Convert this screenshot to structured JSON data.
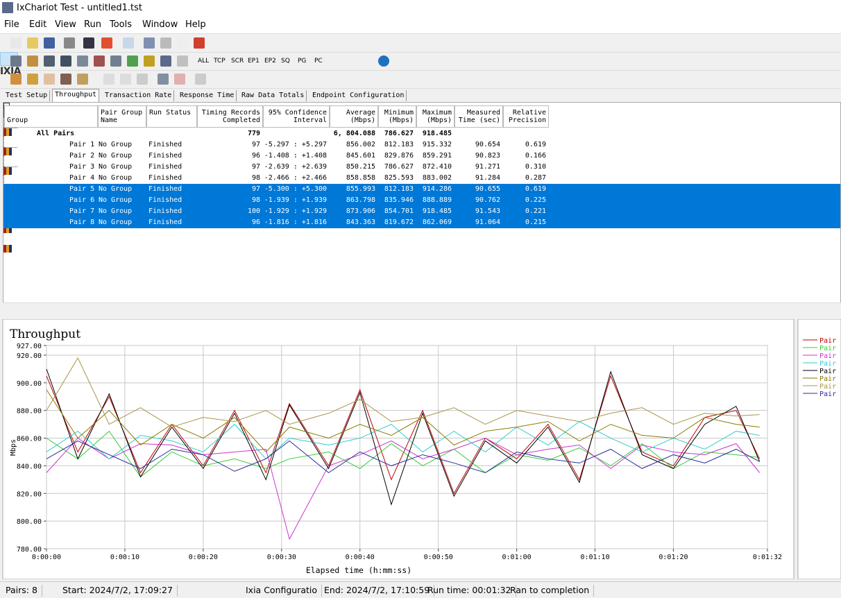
{
  "window": {
    "title": "IxChariot Test - untitled1.tst"
  },
  "menu": [
    "File",
    "Edit",
    "View",
    "Run",
    "Tools",
    "Window",
    "Help"
  ],
  "toolbar": {
    "filters": [
      "ALL",
      "TCP",
      "SCR",
      "EP1",
      "EP2",
      "SQ",
      "PG",
      "PC"
    ],
    "logo": "IXIA"
  },
  "tabs": [
    "Test Setup",
    "Throughput",
    "Transaction Rate",
    "Response Time",
    "Raw Data Totals",
    "Endpoint Configuration"
  ],
  "active_tab": 1,
  "table": {
    "columns": [
      "Group",
      "Pair Group Name",
      "Run Status",
      "Timing Records Completed",
      "95% Confidence Interval",
      "Average (Mbps)",
      "Minimum (Mbps)",
      "Maximum (Mbps)",
      "Measured Time (sec)",
      "Relative Precision"
    ],
    "summary": {
      "group": "All Pairs",
      "records": "779",
      "average": "6, 804.088",
      "minimum": "786.627",
      "maximum": "918.485"
    },
    "rows": [
      {
        "cells": [
          "Pair 1",
          "No Group",
          "Finished",
          "97",
          "-5.297 : +5.297",
          "856.002",
          "812.183",
          "915.332",
          "90.654",
          "0.619"
        ],
        "selected": false
      },
      {
        "cells": [
          "Pair 2",
          "No Group",
          "Finished",
          "96",
          "-1.408 : +1.408",
          "845.601",
          "829.876",
          "859.291",
          "90.823",
          "0.166"
        ],
        "selected": false
      },
      {
        "cells": [
          "Pair 3",
          "No Group",
          "Finished",
          "97",
          "-2.639 : +2.639",
          "850.215",
          "786.627",
          "872.410",
          "91.271",
          "0.310"
        ],
        "selected": false
      },
      {
        "cells": [
          "Pair 4",
          "No Group",
          "Finished",
          "98",
          "-2.466 : +2.466",
          "858.858",
          "825.593",
          "883.002",
          "91.284",
          "0.287"
        ],
        "selected": false
      },
      {
        "cells": [
          "Pair 5",
          "No Group",
          "Finished",
          "97",
          "-5.300 : +5.300",
          "855.993",
          "812.183",
          "914.286",
          "90.655",
          "0.619"
        ],
        "selected": true
      },
      {
        "cells": [
          "Pair 6",
          "No Group",
          "Finished",
          "98",
          "-1.939 : +1.939",
          "863.798",
          "835.946",
          "888.889",
          "90.762",
          "0.225"
        ],
        "selected": true
      },
      {
        "cells": [
          "Pair 7",
          "No Group",
          "Finished",
          "100",
          "-1.929 : +1.929",
          "873.906",
          "854.701",
          "918.485",
          "91.543",
          "0.221"
        ],
        "selected": true
      },
      {
        "cells": [
          "Pair 8",
          "No Group",
          "Finished",
          "96",
          "-1.816 : +1.816",
          "843.363",
          "819.672",
          "862.069",
          "91.064",
          "0.215"
        ],
        "selected": true
      }
    ]
  },
  "chart_data": {
    "type": "line",
    "title": "Throughput",
    "x_label": "Elapsed time (h:mm:ss)",
    "y_label": "Mbps",
    "x": [
      0,
      4,
      8,
      12,
      16,
      20,
      24,
      28,
      31,
      36,
      40,
      44,
      48,
      52,
      56,
      60,
      64,
      68,
      72,
      76,
      80,
      84,
      88,
      91
    ],
    "xlim": [
      0,
      92
    ],
    "xticks": [
      {
        "value": 0,
        "label": "0:00:00"
      },
      {
        "value": 10,
        "label": "0:00:10"
      },
      {
        "value": 20,
        "label": "0:00:20"
      },
      {
        "value": 30,
        "label": "0:00:30"
      },
      {
        "value": 40,
        "label": "0:00:40"
      },
      {
        "value": 50,
        "label": "0:00:50"
      },
      {
        "value": 60,
        "label": "0:01:00"
      },
      {
        "value": 70,
        "label": "0:01:10"
      },
      {
        "value": 80,
        "label": "0:01:20"
      },
      {
        "value": 92,
        "label": "0:01:32"
      }
    ],
    "ylim": [
      780,
      927
    ],
    "yticks": [
      {
        "value": 780,
        "label": "780.00"
      },
      {
        "value": 800,
        "label": "800.00"
      },
      {
        "value": 820,
        "label": "820.00"
      },
      {
        "value": 840,
        "label": "840.00"
      },
      {
        "value": 860,
        "label": "860.00"
      },
      {
        "value": 880,
        "label": "880.00"
      },
      {
        "value": 900,
        "label": "900.00"
      },
      {
        "value": 920,
        "label": "920.00"
      },
      {
        "value": 927,
        "label": "927.00"
      }
    ],
    "grid": true,
    "legend": "right",
    "series": [
      {
        "name": "Pair",
        "color": "#c00000",
        "values": [
          905,
          850,
          890,
          835,
          870,
          840,
          880,
          835,
          885,
          840,
          895,
          830,
          880,
          820,
          860,
          845,
          870,
          830,
          905,
          850,
          840,
          875,
          880,
          845
        ]
      },
      {
        "name": "Pair",
        "color": "#33cc33",
        "values": [
          860,
          845,
          865,
          832,
          850,
          840,
          845,
          838,
          845,
          850,
          838,
          856,
          840,
          852,
          835,
          848,
          844,
          853,
          840,
          856,
          838,
          850,
          848,
          846
        ]
      },
      {
        "name": "Pair",
        "color": "#cc33cc",
        "values": [
          835,
          860,
          845,
          856,
          855,
          848,
          850,
          852,
          787,
          840,
          848,
          858,
          845,
          852,
          860,
          848,
          852,
          855,
          838,
          855,
          850,
          848,
          856,
          835
        ]
      },
      {
        "name": "Pair",
        "color": "#33cccc",
        "values": [
          850,
          865,
          845,
          862,
          858,
          850,
          870,
          845,
          860,
          855,
          860,
          870,
          850,
          865,
          850,
          868,
          855,
          872,
          860,
          850,
          860,
          852,
          865,
          862
        ]
      },
      {
        "name": "Pair",
        "color": "#000000",
        "values": [
          910,
          845,
          892,
          832,
          868,
          838,
          878,
          830,
          884,
          838,
          893,
          812,
          878,
          818,
          858,
          842,
          868,
          828,
          908,
          848,
          838,
          870,
          883,
          843
        ]
      },
      {
        "name": "Pair",
        "color": "#8a7a00",
        "values": [
          895,
          860,
          880,
          855,
          870,
          860,
          875,
          850,
          868,
          860,
          870,
          862,
          875,
          855,
          865,
          868,
          872,
          858,
          870,
          862,
          860,
          875,
          870,
          868
        ]
      },
      {
        "name": "Pair",
        "color": "#a8944a",
        "values": [
          880,
          918,
          870,
          882,
          868,
          875,
          872,
          880,
          870,
          878,
          888,
          872,
          875,
          882,
          870,
          880,
          876,
          872,
          878,
          882,
          870,
          878,
          876,
          877
        ]
      },
      {
        "name": "Pair",
        "color": "#2a2a9a",
        "values": [
          845,
          858,
          848,
          838,
          852,
          848,
          836,
          845,
          858,
          835,
          850,
          840,
          848,
          842,
          835,
          850,
          845,
          842,
          852,
          838,
          848,
          842,
          852,
          843
        ]
      }
    ]
  },
  "status_bar": [
    "Pairs: 8",
    "Start: 2024/7/2, 17:09:27",
    "Ixia Configuratio",
    "End: 2024/7/2, 17:10:59",
    "Run time: 00:01:32",
    "Ran to completion"
  ]
}
